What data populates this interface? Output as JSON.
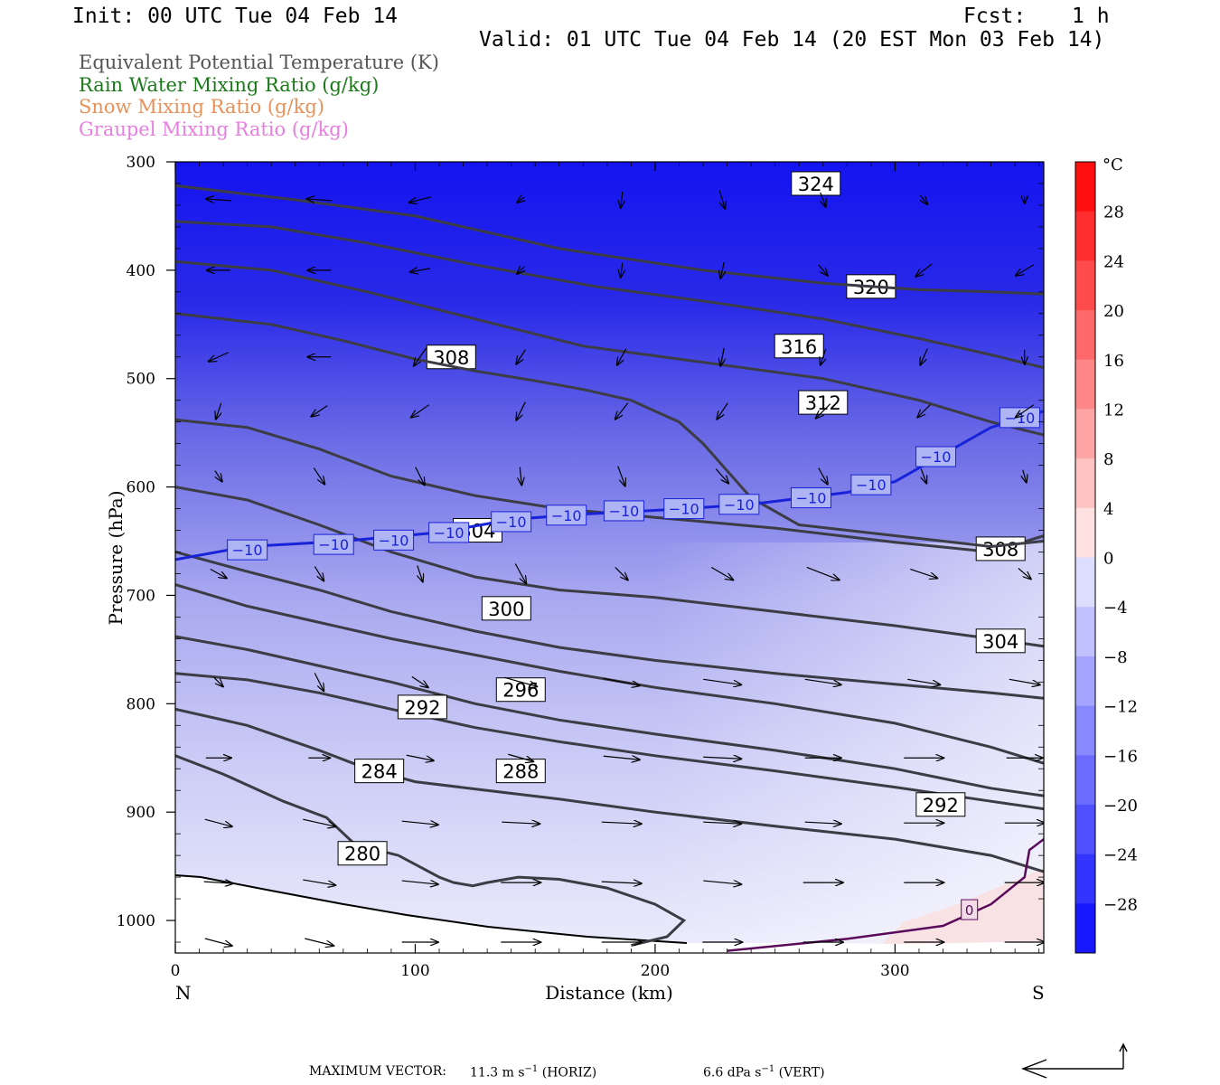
{
  "header": {
    "init": "Init: 00 UTC Tue 04 Feb 14",
    "fcst_label": "Fcst:",
    "fcst_value": "1 h",
    "valid": "Valid: 01 UTC Tue 04 Feb 14 (20 EST Mon 03 Feb 14)"
  },
  "legend": [
    {
      "label": "Equivalent Potential Temperature (K)",
      "color": "#555555"
    },
    {
      "label": "Rain Water Mixing Ratio (g/kg)",
      "color": "#1a7a1a"
    },
    {
      "label": "Snow Mixing Ratio (g/kg)",
      "color": "#e8925a"
    },
    {
      "label": "Graupel Mixing Ratio (g/kg)",
      "color": "#e77ee0"
    }
  ],
  "chart_data": {
    "type": "cross-section contour",
    "ylabel": "Pressure (hPa)",
    "xlabel": "Distance (km)",
    "x_ticks": [
      0,
      100,
      200,
      300
    ],
    "y_ticks": [
      300,
      400,
      500,
      600,
      700,
      800,
      900,
      1000
    ],
    "xlim": [
      0,
      362
    ],
    "ylim": [
      300,
      1030
    ],
    "end_labels": {
      "left": "N",
      "right": "S"
    },
    "colorbar": {
      "unit": "°C",
      "ticks": [
        28,
        24,
        20,
        16,
        12,
        8,
        4,
        0,
        -4,
        -8,
        -12,
        -16,
        -20,
        -24,
        -28
      ],
      "labels": [
        "28",
        "24",
        "20",
        "16",
        "12",
        "8",
        "4",
        "0",
        "−4",
        "−8",
        "−12",
        "−16",
        "−20",
        "−24",
        "−28"
      ]
    },
    "theta_e_contours": [
      {
        "value": 280,
        "label": "280",
        "points": [
          [
            0,
            848
          ],
          [
            20,
            865
          ],
          [
            45,
            890
          ],
          [
            63,
            905
          ],
          [
            75,
            930
          ],
          [
            93,
            940
          ],
          [
            110,
            960
          ],
          [
            116,
            965
          ],
          [
            124,
            968
          ],
          [
            130,
            965
          ],
          [
            143,
            960
          ],
          [
            160,
            962
          ],
          [
            180,
            970
          ],
          [
            200,
            985
          ],
          [
            212,
            1000
          ],
          [
            205,
            1015
          ],
          [
            190,
            1023
          ]
        ]
      },
      {
        "value": 284,
        "label": "284",
        "points": [
          [
            0,
            805
          ],
          [
            30,
            820
          ],
          [
            60,
            843
          ],
          [
            80,
            860
          ],
          [
            100,
            872
          ],
          [
            130,
            880
          ],
          [
            160,
            888
          ],
          [
            200,
            900
          ],
          [
            250,
            913
          ],
          [
            300,
            925
          ],
          [
            340,
            940
          ],
          [
            362,
            955
          ]
        ]
      },
      {
        "value": 288,
        "label": "288",
        "points": [
          [
            0,
            772
          ],
          [
            30,
            778
          ],
          [
            60,
            790
          ],
          [
            90,
            805
          ],
          [
            125,
            822
          ],
          [
            160,
            835
          ],
          [
            200,
            848
          ],
          [
            250,
            862
          ],
          [
            300,
            877
          ],
          [
            340,
            890
          ],
          [
            362,
            897
          ]
        ]
      },
      {
        "value": 292,
        "label": "292",
        "points": [
          [
            0,
            738
          ],
          [
            30,
            750
          ],
          [
            60,
            765
          ],
          [
            90,
            780
          ],
          [
            125,
            800
          ],
          [
            160,
            815
          ],
          [
            200,
            828
          ],
          [
            250,
            843
          ],
          [
            300,
            860
          ],
          [
            340,
            878
          ],
          [
            362,
            885
          ]
        ]
      },
      {
        "value": 296,
        "label": "296",
        "points": [
          [
            0,
            690
          ],
          [
            30,
            710
          ],
          [
            60,
            725
          ],
          [
            90,
            740
          ],
          [
            125,
            755
          ],
          [
            160,
            770
          ],
          [
            200,
            785
          ],
          [
            250,
            800
          ],
          [
            300,
            818
          ],
          [
            340,
            840
          ],
          [
            362,
            855
          ]
        ]
      },
      {
        "value": 300,
        "label": "300",
        "points": [
          [
            0,
            660
          ],
          [
            30,
            678
          ],
          [
            60,
            695
          ],
          [
            90,
            715
          ],
          [
            125,
            733
          ],
          [
            160,
            748
          ],
          [
            200,
            760
          ],
          [
            250,
            772
          ],
          [
            300,
            782
          ],
          [
            340,
            790
          ],
          [
            362,
            795
          ]
        ]
      },
      {
        "value": 304,
        "label": "304",
        "points": [
          [
            0,
            600
          ],
          [
            30,
            612
          ],
          [
            60,
            635
          ],
          [
            90,
            660
          ],
          [
            125,
            683
          ],
          [
            160,
            695
          ],
          [
            200,
            702
          ],
          [
            250,
            715
          ],
          [
            300,
            728
          ],
          [
            340,
            740
          ],
          [
            362,
            747
          ]
        ]
      },
      {
        "value": 308,
        "label": "308",
        "points": [
          [
            0,
            538
          ],
          [
            30,
            545
          ],
          [
            60,
            565
          ],
          [
            90,
            590
          ],
          [
            125,
            608
          ],
          [
            160,
            620
          ],
          [
            200,
            628
          ],
          [
            250,
            638
          ],
          [
            300,
            651
          ],
          [
            340,
            660
          ],
          [
            362,
            645
          ]
        ]
      },
      {
        "value": 312,
        "label": "312",
        "points": [
          [
            0,
            440
          ],
          [
            40,
            450
          ],
          [
            70,
            465
          ],
          [
            100,
            482
          ],
          [
            125,
            493
          ],
          [
            150,
            502
          ],
          [
            170,
            510
          ],
          [
            190,
            520
          ],
          [
            200,
            530
          ],
          [
            210,
            540
          ],
          [
            220,
            560
          ],
          [
            240,
            610
          ],
          [
            260,
            635
          ],
          [
            300,
            645
          ],
          [
            340,
            655
          ],
          [
            362,
            650
          ]
        ]
      },
      {
        "value": 316,
        "label": "316",
        "points": [
          [
            0,
            392
          ],
          [
            40,
            400
          ],
          [
            80,
            420
          ],
          [
            125,
            445
          ],
          [
            170,
            470
          ],
          [
            220,
            485
          ],
          [
            270,
            500
          ],
          [
            310,
            520
          ],
          [
            340,
            540
          ],
          [
            362,
            552
          ]
        ]
      },
      {
        "value": 320,
        "label": "320",
        "points": [
          [
            0,
            355
          ],
          [
            40,
            360
          ],
          [
            80,
            375
          ],
          [
            125,
            395
          ],
          [
            175,
            415
          ],
          [
            225,
            430
          ],
          [
            270,
            445
          ],
          [
            310,
            463
          ],
          [
            340,
            478
          ],
          [
            362,
            490
          ]
        ]
      },
      {
        "value": 324,
        "label": "324",
        "points": [
          [
            0,
            322
          ],
          [
            50,
            335
          ],
          [
            100,
            350
          ],
          [
            160,
            380
          ],
          [
            220,
            400
          ],
          [
            270,
            412
          ],
          [
            310,
            418
          ],
          [
            340,
            420
          ],
          [
            362,
            422
          ]
        ]
      }
    ],
    "isotherm_minus10": {
      "label": "−10",
      "points": [
        [
          0,
          667
        ],
        [
          30,
          655
        ],
        [
          70,
          650
        ],
        [
          110,
          642
        ],
        [
          140,
          630
        ],
        [
          170,
          625
        ],
        [
          205,
          621
        ],
        [
          240,
          616
        ],
        [
          280,
          605
        ],
        [
          300,
          595
        ],
        [
          320,
          570
        ],
        [
          340,
          545
        ],
        [
          362,
          530
        ]
      ]
    },
    "isotherm_zero": {
      "label": "0",
      "points": [
        [
          230,
          1028
        ],
        [
          280,
          1017
        ],
        [
          320,
          1005
        ],
        [
          340,
          985
        ],
        [
          354,
          960
        ],
        [
          356,
          935
        ],
        [
          362,
          925
        ]
      ]
    },
    "footer": {
      "max_vector": "MAXIMUM VECTOR:",
      "horiz_value": "11.3 m s",
      "horiz_unit": "(HORIZ)",
      "vert_value": "6.6 dPa s",
      "vert_unit": "(VERT)",
      "exp": "−1"
    }
  }
}
